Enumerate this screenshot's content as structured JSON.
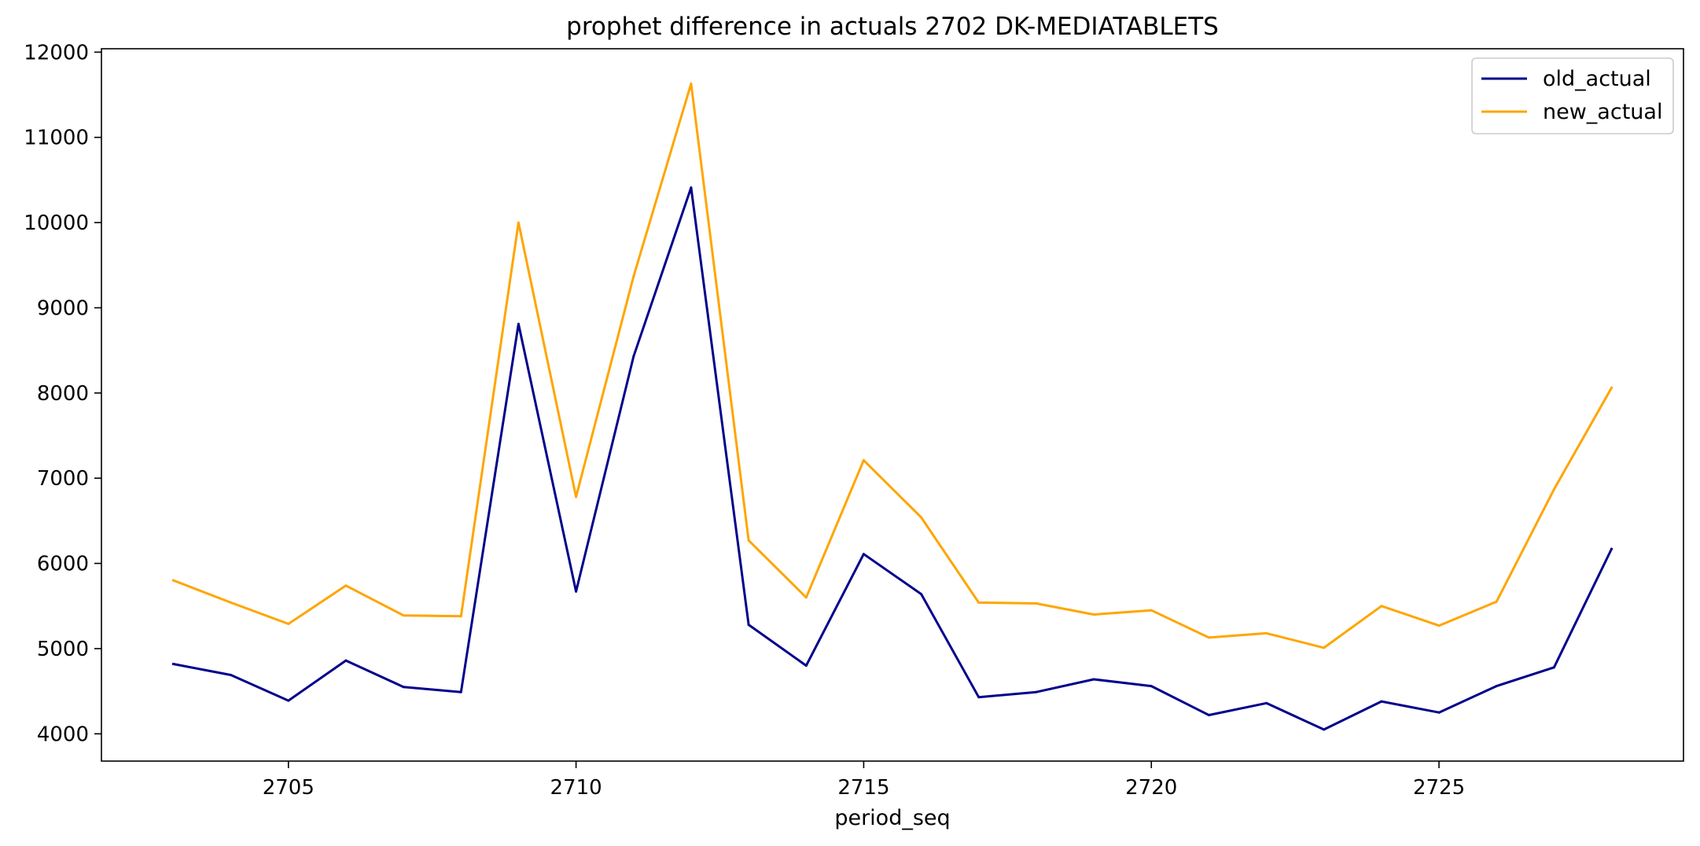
{
  "chart_data": {
    "type": "line",
    "title": "prophet difference in actuals 2702 DK-MEDIATABLETS",
    "xlabel": "period_seq",
    "ylabel": "",
    "xlim": [
      2701.75,
      2729.25
    ],
    "ylim": [
      3680,
      12040
    ],
    "x": [
      2703,
      2704,
      2705,
      2706,
      2707,
      2708,
      2709,
      2710,
      2711,
      2712,
      2713,
      2714,
      2715,
      2716,
      2717,
      2718,
      2719,
      2720,
      2721,
      2722,
      2723,
      2724,
      2725,
      2726,
      2727,
      2728
    ],
    "xticks": [
      2705,
      2710,
      2715,
      2720,
      2725
    ],
    "yticks": [
      4000,
      5000,
      6000,
      7000,
      8000,
      9000,
      10000,
      11000,
      12000
    ],
    "legend_position": "upper right",
    "series": [
      {
        "name": "old_actual",
        "color": "#00008b",
        "values": [
          4820,
          4690,
          4390,
          4860,
          4550,
          4490,
          8810,
          5670,
          8430,
          10410,
          5280,
          4800,
          6110,
          5640,
          4430,
          4490,
          4640,
          4560,
          4220,
          4360,
          4050,
          4380,
          4250,
          4560,
          4780,
          6170
        ]
      },
      {
        "name": "new_actual",
        "color": "#ffa500",
        "values": [
          5800,
          5540,
          5290,
          5740,
          5390,
          5380,
          10000,
          6780,
          9370,
          11630,
          6270,
          5600,
          7210,
          6540,
          5540,
          5530,
          5400,
          5450,
          5130,
          5180,
          5010,
          5500,
          5270,
          5550,
          6870,
          8060
        ]
      }
    ]
  }
}
